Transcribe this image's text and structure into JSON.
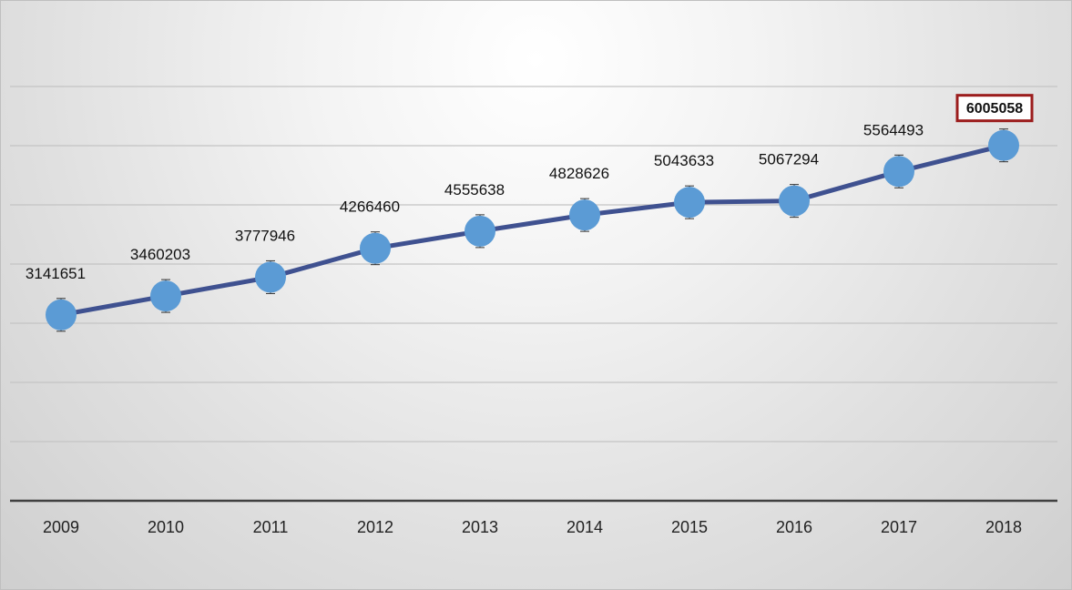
{
  "chart_data": {
    "type": "line",
    "title": "",
    "xlabel": "",
    "ylabel": "",
    "categories": [
      "2009",
      "2010",
      "2011",
      "2012",
      "2013",
      "2014",
      "2015",
      "2016",
      "2017",
      "2018"
    ],
    "series": [
      {
        "values": [
          3141651,
          3460203,
          3777946,
          4266460,
          4555638,
          4828626,
          5043633,
          5067294,
          5564493,
          6005058
        ],
        "value_labels": [
          "3141651",
          "3460203",
          "3777946",
          "4266460",
          "4555638",
          "4828626",
          "5043633",
          "5067294",
          "5564493",
          "6005058"
        ],
        "color": "#3f5190",
        "marker_color": "#5b9bd5",
        "error_bars": true
      }
    ],
    "highlighted_label_index": 9,
    "highlight_box_color": "#9b1c1c",
    "ylim": [
      0,
      7000000
    ],
    "y_gridline_step": 1000000,
    "grid": true,
    "y_tick_labels_visible": false,
    "legend": "none"
  }
}
